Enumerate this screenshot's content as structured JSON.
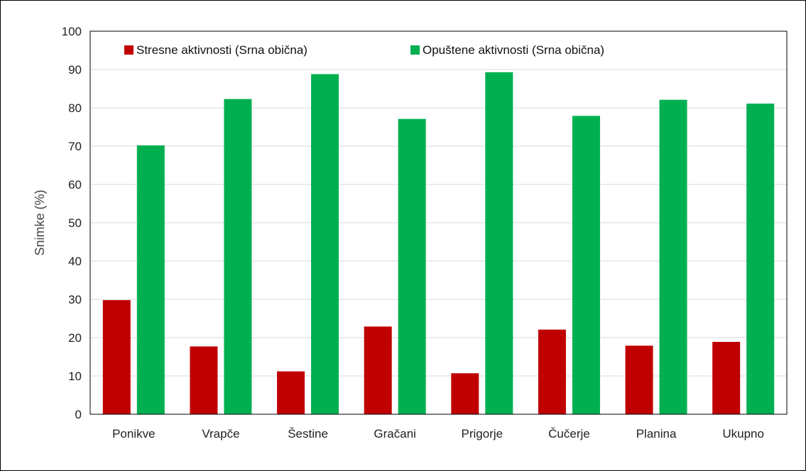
{
  "chart_data": {
    "type": "bar",
    "title": "",
    "xlabel": "",
    "ylabel": "Snimke (%)",
    "ylim": [
      0,
      100
    ],
    "ytick_step": 10,
    "grid": true,
    "legend_position": "top-left",
    "categories": [
      "Ponikve",
      "Vrapče",
      "Šestine",
      "Gračani",
      "Prigorje",
      "Čučerje",
      "Planina",
      "Ukupno"
    ],
    "series": [
      {
        "name": "Stresne aktivnosti (Srna obična)",
        "color": "#c00000",
        "values": [
          29.8,
          17.7,
          11.2,
          22.9,
          10.7,
          22.1,
          17.9,
          18.9
        ]
      },
      {
        "name": "Opuštene aktivnosti (Srna obična)",
        "color": "#00b050",
        "values": [
          70.2,
          82.3,
          88.8,
          77.1,
          89.3,
          77.9,
          82.1,
          81.1
        ]
      }
    ]
  }
}
